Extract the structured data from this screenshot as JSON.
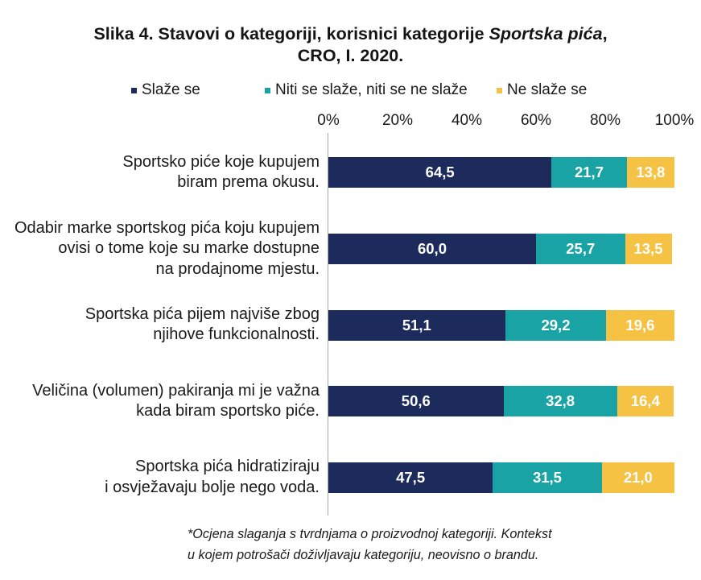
{
  "chart_data": {
    "type": "bar",
    "orientation": "horizontal",
    "stacked": true,
    "title": "Slika 4. Stavovi o kategoriji, korisnici kategorije Sportska pića,\nCRO, I. 2020.",
    "title_italic": "Sportska pića",
    "categories": [
      "Sportsko piće koje kupujem\nbiram prema okusu.",
      "Odabir marke sportskog pića koju kupujem\novisi o tome koje su marke dostupne\nna prodajnome mjestu.",
      "Sportska pića pijem najviše zbog\nnjihove funkcionalnosti.",
      "Veličina (volumen) pakiranja mi je važna\nkada biram sportsko piće.",
      "Sportska pića hidratiziraju\ni osvježavaju bolje nego voda."
    ],
    "series": [
      {
        "name": "Slaže se",
        "color": "#1d2b5c",
        "values": [
          64.5,
          60.0,
          51.1,
          50.6,
          47.5
        ]
      },
      {
        "name": "Niti se slaže, niti se ne slaže",
        "color": "#19a3a4",
        "values": [
          21.7,
          25.7,
          29.2,
          32.8,
          31.5
        ]
      },
      {
        "name": "Ne slaže se",
        "color": "#f5c244",
        "values": [
          13.8,
          13.5,
          19.6,
          16.4,
          21.0
        ]
      }
    ],
    "xlim": [
      0,
      100
    ],
    "xticks": [
      "0%",
      "20%",
      "40%",
      "60%",
      "80%",
      "100%"
    ],
    "grid": false,
    "legend_position": "top",
    "data_label_color": "#ffffff",
    "footnote": "*Ocjena slaganja s tvrdnjama o proizvodnoj kategoriji. Kontekst\nu kojem potrošači doživljavaju kategoriju, neovisno o brandu."
  }
}
